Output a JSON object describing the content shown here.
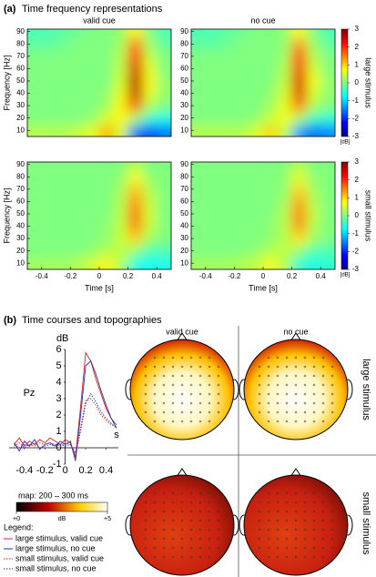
{
  "panel_a": {
    "label": "(a)",
    "title": "Time frequency representations"
  },
  "panel_b": {
    "label": "(b)",
    "title": "Time courses and topographies",
    "topographies": {
      "columns": [
        "valid cue",
        "no cue"
      ],
      "rows": [
        "large stimulus",
        "small stimulus"
      ]
    },
    "map_colorbar": {
      "title": "map: 200 – 300 ms",
      "unit": "dB",
      "lim": [
        0,
        5
      ],
      "ticks": [
        {
          "value": 0,
          "label": "+0"
        },
        {
          "value": 5,
          "label": "+5"
        }
      ]
    },
    "legend_title": "Legend:"
  },
  "chart_data": [
    {
      "type": "heatmap",
      "title": "valid cue",
      "y_label": "Frequency [Hz]",
      "colormap": "jet",
      "clim": [
        -3,
        3
      ],
      "x": [
        -0.45,
        -0.35,
        -0.25,
        -0.15,
        -0.05,
        0.05,
        0.15,
        0.25,
        0.35,
        0.45
      ],
      "y": [
        10,
        20,
        30,
        40,
        50,
        60,
        70,
        80,
        90
      ],
      "xlim": [
        -0.5,
        0.5
      ],
      "ylim": [
        5,
        92
      ],
      "yticks": [
        10,
        20,
        30,
        40,
        50,
        60,
        70,
        80,
        90
      ],
      "z": [
        [
          0.3,
          0.3,
          0.3,
          0.4,
          0.6,
          1.2,
          0.5,
          -1.5,
          -1.8,
          -1.5
        ],
        [
          0,
          0,
          0,
          0,
          0.1,
          0.5,
          0.8,
          0.3,
          -0.5,
          -0.6
        ],
        [
          0,
          0,
          0,
          0,
          0,
          0.2,
          0.8,
          1.8,
          0.3,
          0
        ],
        [
          0,
          0,
          0,
          0,
          0,
          0.1,
          0.6,
          2.6,
          0.6,
          0.1
        ],
        [
          0,
          0,
          0,
          0,
          0,
          0,
          0.5,
          2.7,
          0.8,
          0.1
        ],
        [
          0,
          0,
          0,
          0,
          0,
          0,
          0.4,
          2.5,
          0.6,
          0
        ],
        [
          0,
          0,
          0,
          0,
          0,
          0,
          0.3,
          2.2,
          0.4,
          0
        ],
        [
          -0.2,
          -0.2,
          -0.1,
          0,
          0,
          0,
          0.2,
          1.6,
          0.2,
          -0.2
        ],
        [
          -0.3,
          -0.3,
          -0.2,
          -0.1,
          0,
          0,
          0.1,
          0.8,
          0,
          -0.3
        ]
      ]
    },
    {
      "type": "heatmap",
      "title": "no cue",
      "colormap": "jet",
      "clim": [
        -3,
        3
      ],
      "x": [
        -0.45,
        -0.35,
        -0.25,
        -0.15,
        -0.05,
        0.05,
        0.15,
        0.25,
        0.35,
        0.45
      ],
      "y": [
        10,
        20,
        30,
        40,
        50,
        60,
        70,
        80,
        90
      ],
      "xlim": [
        -0.5,
        0.5
      ],
      "ylim": [
        5,
        92
      ],
      "yticks": [
        10,
        20,
        30,
        40,
        50,
        60,
        70,
        80,
        90
      ],
      "colorbar": {
        "label": "large stimulus",
        "unit": "[dB]",
        "ticks": [
          -3,
          -2,
          -1,
          0,
          1,
          2,
          3
        ]
      },
      "z": [
        [
          0.3,
          0.3,
          0.3,
          0.3,
          0.5,
          1.0,
          0.4,
          -1.3,
          -1.6,
          -1.4
        ],
        [
          0,
          0,
          0,
          0,
          0.1,
          0.4,
          0.7,
          0.3,
          -0.4,
          -0.5
        ],
        [
          0,
          0,
          0,
          0,
          0,
          0.2,
          0.6,
          1.6,
          0.3,
          0
        ],
        [
          0,
          0,
          0,
          0,
          0,
          0.1,
          0.5,
          2.4,
          0.5,
          0.1
        ],
        [
          0,
          0,
          0,
          0,
          0,
          0,
          0.4,
          2.5,
          0.7,
          0.1
        ],
        [
          0,
          0,
          0,
          0,
          0,
          0,
          0.3,
          2.3,
          0.5,
          0
        ],
        [
          0,
          0,
          0,
          0,
          0,
          0,
          0.2,
          2.0,
          0.3,
          0
        ],
        [
          -0.2,
          -0.2,
          -0.1,
          0,
          0,
          0,
          0.1,
          1.4,
          0.2,
          -0.2
        ],
        [
          -0.3,
          -0.3,
          -0.2,
          -0.1,
          0,
          0,
          0.1,
          0.7,
          0,
          -0.3
        ]
      ]
    },
    {
      "type": "heatmap",
      "x_label": "Time [s]",
      "y_label": "Frequency [Hz]",
      "colormap": "jet",
      "clim": [
        -3,
        3
      ],
      "x": [
        -0.45,
        -0.35,
        -0.25,
        -0.15,
        -0.05,
        0.05,
        0.15,
        0.25,
        0.35,
        0.45
      ],
      "y": [
        10,
        20,
        30,
        40,
        50,
        60,
        70,
        80,
        90
      ],
      "xlim": [
        -0.5,
        0.5
      ],
      "ylim": [
        5,
        92
      ],
      "xticks": [
        -0.4,
        -0.2,
        0,
        0.2,
        0.4
      ],
      "yticks": [
        10,
        20,
        30,
        40,
        50,
        60,
        70,
        80,
        90
      ],
      "z": [
        [
          0.2,
          0.2,
          0.2,
          0.3,
          0.5,
          0.8,
          0.3,
          -0.6,
          -0.7,
          -0.6
        ],
        [
          0,
          0,
          0,
          0,
          0.1,
          0.3,
          0.4,
          0.1,
          -0.3,
          -0.3
        ],
        [
          0,
          0,
          0,
          0,
          0,
          0.1,
          0.4,
          1.0,
          0.2,
          0
        ],
        [
          0,
          0,
          0,
          0,
          0,
          0.1,
          0.4,
          1.5,
          0.4,
          0
        ],
        [
          0,
          0,
          0,
          0,
          0,
          0,
          0.3,
          1.6,
          0.5,
          0
        ],
        [
          0,
          0,
          0,
          0,
          0,
          0,
          0.3,
          1.4,
          0.4,
          0
        ],
        [
          0,
          0,
          0,
          0,
          0,
          0,
          0.2,
          1.1,
          0.3,
          0
        ],
        [
          0,
          0,
          0,
          0,
          0,
          0,
          0.1,
          0.7,
          0.1,
          0
        ],
        [
          0,
          0,
          0,
          0,
          0,
          0,
          0,
          0.3,
          0,
          0
        ]
      ]
    },
    {
      "type": "heatmap",
      "x_label": "Time [s]",
      "colormap": "jet",
      "clim": [
        -3,
        3
      ],
      "x": [
        -0.45,
        -0.35,
        -0.25,
        -0.15,
        -0.05,
        0.05,
        0.15,
        0.25,
        0.35,
        0.45
      ],
      "y": [
        10,
        20,
        30,
        40,
        50,
        60,
        70,
        80,
        90
      ],
      "xlim": [
        -0.5,
        0.5
      ],
      "ylim": [
        5,
        92
      ],
      "xticks": [
        -0.4,
        -0.2,
        0,
        0.2,
        0.4
      ],
      "yticks": [
        10,
        20,
        30,
        40,
        50,
        60,
        70,
        80,
        90
      ],
      "colorbar": {
        "label": "small stimulus",
        "unit": "[dB]",
        "ticks": [
          -3,
          -2,
          -1,
          0,
          1,
          2,
          3
        ]
      },
      "z": [
        [
          0.2,
          0.2,
          0.2,
          0.3,
          0.4,
          0.7,
          0.3,
          -0.5,
          -0.6,
          -0.5
        ],
        [
          0,
          0,
          0,
          0,
          0.1,
          0.3,
          0.4,
          0.1,
          -0.3,
          -0.3
        ],
        [
          0,
          0,
          0,
          0,
          0,
          0.1,
          0.3,
          0.9,
          0.2,
          0
        ],
        [
          0,
          0,
          0,
          0,
          0,
          0.1,
          0.3,
          1.4,
          0.3,
          0
        ],
        [
          0,
          0,
          0,
          0,
          0,
          0,
          0.3,
          1.5,
          0.4,
          0
        ],
        [
          0,
          0,
          0,
          0,
          0,
          0,
          0.2,
          1.3,
          0.3,
          0
        ],
        [
          0,
          0,
          0,
          0,
          0,
          0,
          0.1,
          1.0,
          0.2,
          0
        ],
        [
          0,
          0,
          0,
          0,
          0,
          0,
          0.1,
          0.6,
          0.1,
          0
        ],
        [
          0,
          0,
          0,
          0,
          0,
          0,
          0,
          0.3,
          0,
          0
        ]
      ]
    },
    {
      "type": "line",
      "title": "Pz",
      "y_label": "dB",
      "x_label": "s",
      "x": [
        -0.5,
        -0.45,
        -0.4,
        -0.35,
        -0.3,
        -0.25,
        -0.2,
        -0.15,
        -0.1,
        -0.05,
        0,
        0.05,
        0.1,
        0.15,
        0.2,
        0.25,
        0.3,
        0.35,
        0.4,
        0.45,
        0.5
      ],
      "xlim": [
        -0.55,
        0.52
      ],
      "ylim": [
        -1,
        6
      ],
      "xticks": [
        -0.4,
        -0.2,
        0,
        0.2,
        0.4
      ],
      "yticks": [
        -1,
        0,
        1,
        2,
        3,
        4,
        5,
        6
      ],
      "series": [
        {
          "name": "large stimulus, valid cue",
          "color": "#e02020",
          "linestyle": "solid",
          "values": [
            0.2,
            0.6,
            0.1,
            0.4,
            0.2,
            0.5,
            0.3,
            0.6,
            0.4,
            0.2,
            0.5,
            0.3,
            -0.6,
            2.5,
            5.8,
            5.3,
            4.2,
            3.3,
            2.4,
            1.8,
            1.4
          ]
        },
        {
          "name": "large stimulus, no cue",
          "color": "#2030c0",
          "linestyle": "solid",
          "values": [
            0.3,
            -0.2,
            0.4,
            0.1,
            0.5,
            -0.1,
            0.2,
            0.3,
            0.1,
            0.4,
            0.2,
            0.4,
            -0.8,
            2.0,
            5.0,
            5.3,
            4.5,
            3.5,
            2.6,
            1.8,
            1.2
          ]
        },
        {
          "name": "small stimulus, valid cue",
          "color": "#e02020",
          "linestyle": "dotted",
          "values": [
            0.1,
            0.3,
            0,
            0.2,
            0.1,
            0.3,
            0.2,
            0.3,
            0.2,
            0.1,
            0.3,
            0.2,
            -0.3,
            1.2,
            2.9,
            3.0,
            2.6,
            2.0,
            1.7,
            1.4,
            1.3
          ]
        },
        {
          "name": "small stimulus, no cue",
          "color": "#2030c0",
          "linestyle": "dotted",
          "values": [
            0.2,
            0,
            0.2,
            0.1,
            0.3,
            0,
            0.1,
            0.2,
            0.1,
            0.2,
            0.1,
            0.2,
            -0.4,
            1.0,
            2.7,
            3.3,
            2.8,
            2.2,
            1.8,
            1.5,
            1.2
          ]
        }
      ]
    }
  ]
}
